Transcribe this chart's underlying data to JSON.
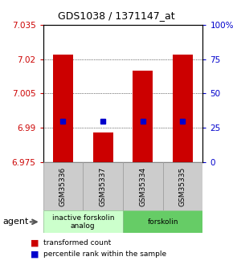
{
  "title": "GDS1038 / 1371147_at",
  "samples": [
    "GSM35336",
    "GSM35337",
    "GSM35334",
    "GSM35335"
  ],
  "bar_bottom": 6.975,
  "bar_values": [
    7.022,
    6.988,
    7.015,
    7.022
  ],
  "percentile_values": [
    6.993,
    6.993,
    6.993,
    6.993
  ],
  "ylim": [
    6.975,
    7.035
  ],
  "yticks_left": [
    6.975,
    6.99,
    7.005,
    7.02,
    7.035
  ],
  "yticks_right": [
    0,
    25,
    50,
    75,
    100
  ],
  "ytick_labels_left": [
    "6.975",
    "6.99",
    "7.005",
    "7.02",
    "7.035"
  ],
  "ytick_labels_right": [
    "0",
    "25",
    "50",
    "75",
    "100%"
  ],
  "bar_color": "#cc0000",
  "percentile_color": "#0000cc",
  "bar_width": 0.5,
  "groups": [
    {
      "label": "inactive forskolin\nanalog",
      "samples": [
        0,
        1
      ],
      "color": "#ccffcc"
    },
    {
      "label": "forskolin",
      "samples": [
        2,
        3
      ],
      "color": "#66cc66"
    }
  ],
  "agent_label": "agent",
  "legend_bar_label": "transformed count",
  "legend_perc_label": "percentile rank within the sample",
  "sample_box_color": "#cccccc",
  "sample_box_edge": "#999999",
  "group_box_edge": "#88bb88"
}
